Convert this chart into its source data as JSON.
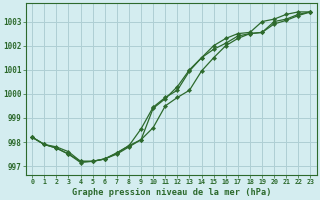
{
  "title": "Graphe pression niveau de la mer (hPa)",
  "background_color": "#d4edf0",
  "grid_color": "#aecfd4",
  "line_color": "#2d6a2d",
  "x_values": [
    0,
    1,
    2,
    3,
    4,
    5,
    6,
    7,
    8,
    9,
    10,
    11,
    12,
    13,
    14,
    15,
    16,
    17,
    18,
    19,
    20,
    21,
    22,
    23
  ],
  "line1": [
    998.2,
    997.9,
    997.8,
    997.6,
    997.2,
    997.2,
    997.3,
    997.5,
    997.8,
    998.1,
    999.4,
    999.8,
    1000.3,
    1001.0,
    1001.5,
    1001.85,
    1002.1,
    1002.4,
    1002.5,
    1002.55,
    1002.9,
    1003.05,
    1003.25,
    1003.4
  ],
  "line2": [
    998.2,
    997.9,
    997.75,
    997.5,
    997.2,
    997.2,
    997.3,
    997.55,
    997.85,
    998.1,
    998.6,
    999.5,
    999.85,
    1000.15,
    1000.95,
    1001.5,
    1002.0,
    1002.3,
    1002.5,
    1002.55,
    1003.0,
    1003.1,
    1003.3,
    1003.4
  ],
  "line3": [
    998.2,
    997.9,
    997.75,
    997.5,
    997.15,
    997.2,
    997.3,
    997.55,
    997.85,
    998.55,
    999.45,
    999.85,
    1000.15,
    1000.95,
    1001.5,
    1002.0,
    1002.3,
    1002.5,
    1002.55,
    1003.0,
    1003.1,
    1003.3,
    1003.4,
    1003.4
  ],
  "ylim": [
    996.65,
    1003.75
  ],
  "yticks": [
    997,
    998,
    999,
    1000,
    1001,
    1002,
    1003
  ],
  "xlim": [
    -0.5,
    23.5
  ],
  "xticks": [
    0,
    1,
    2,
    3,
    4,
    5,
    6,
    7,
    8,
    9,
    10,
    11,
    12,
    13,
    14,
    15,
    16,
    17,
    18,
    19,
    20,
    21,
    22,
    23
  ],
  "figsize": [
    3.2,
    2.0
  ],
  "dpi": 100
}
